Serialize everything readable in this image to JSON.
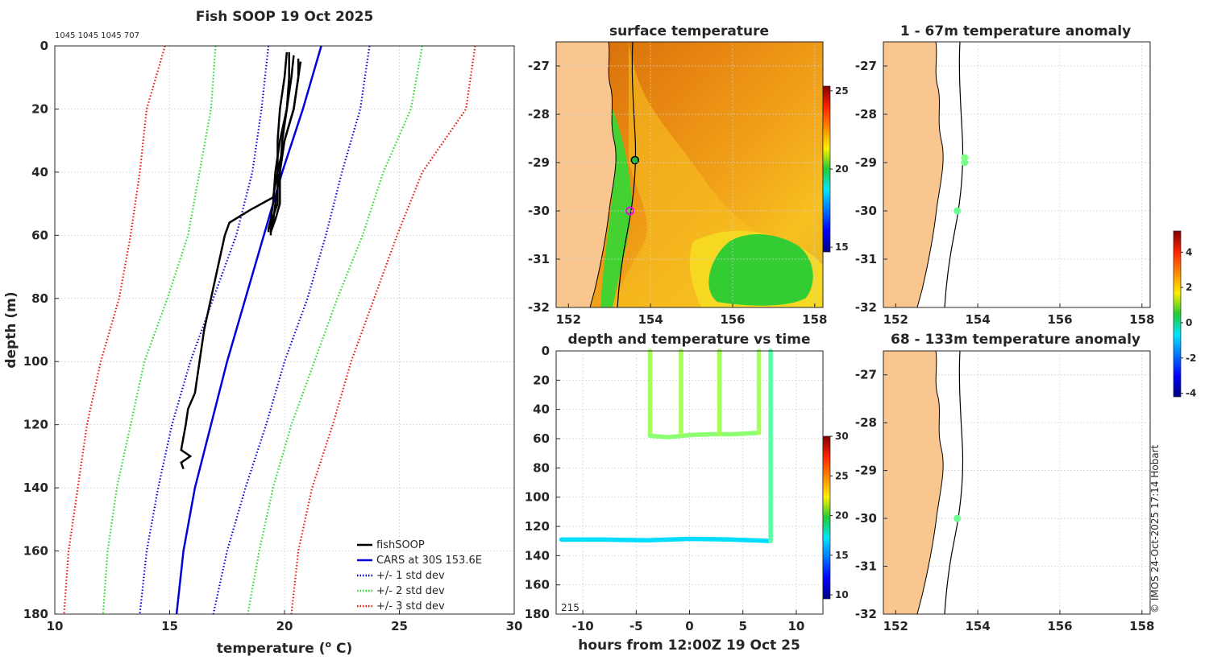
{
  "figure": {
    "title": "Fish SOOP 19 Oct 2025",
    "deployment_ids": "1045 1045 1045 707",
    "credit": "© IMOS 24-Oct-2025 17:14 Hobart"
  },
  "chart_data": [
    {
      "id": "profile",
      "type": "line",
      "title": "Fish SOOP 19 Oct 2025",
      "xlabel": "temperature (",
      "xlabel_sup": "o",
      "xlabel_suffix": " C)",
      "ylabel": "depth (m)",
      "xlim": [
        10,
        30
      ],
      "ylim": [
        180,
        0
      ],
      "xticks": [
        10,
        15,
        20,
        25,
        30
      ],
      "yticks": [
        0,
        20,
        40,
        60,
        80,
        100,
        120,
        140,
        160,
        180
      ],
      "legend": {
        "placement": "bottom-right",
        "entries": [
          "fishSOOP",
          "CARS at 30S 153.6E",
          "+/- 1 std dev",
          "+/- 2 std dev",
          "+/- 3 std dev"
        ]
      },
      "colors": {
        "fishSOOP": "#000000",
        "cars": "#0000dd",
        "std1": "#0000dd",
        "std2": "#22dd22",
        "std3": "#ee1100"
      },
      "depths": [
        0,
        20,
        40,
        60,
        80,
        100,
        120,
        140,
        160,
        180
      ],
      "cars_mean": [
        21.6,
        20.8,
        19.9,
        19.1,
        18.3,
        17.5,
        16.8,
        16.1,
        15.6,
        15.3
      ],
      "std1_lower": [
        19.3,
        19.0,
        18.6,
        17.9,
        16.9,
        15.9,
        15.1,
        14.5,
        14.0,
        13.7
      ],
      "std1_upper": [
        23.7,
        23.3,
        22.5,
        21.8,
        21.0,
        20.0,
        19.2,
        18.3,
        17.5,
        16.9
      ],
      "std2_lower": [
        17.0,
        16.8,
        16.3,
        15.8,
        14.9,
        13.9,
        13.3,
        12.7,
        12.3,
        12.1
      ],
      "std2_upper": [
        26.0,
        25.5,
        24.3,
        23.4,
        22.3,
        21.3,
        20.3,
        19.5,
        18.9,
        18.4
      ],
      "std3_lower": [
        14.8,
        14.0,
        13.7,
        13.3,
        12.8,
        12.0,
        11.4,
        11.0,
        10.6,
        10.4
      ],
      "std3_upper": [
        28.3,
        27.9,
        26.0,
        24.9,
        23.9,
        22.9,
        22.1,
        21.2,
        20.6,
        20.3
      ],
      "fish_profiles": [
        {
          "depth": [
            2,
            10,
            20,
            30,
            40,
            50,
            54,
            57,
            60
          ],
          "temp": [
            20.1,
            20.0,
            19.8,
            19.7,
            19.7,
            19.7,
            19.5,
            19.4,
            19.4
          ]
        },
        {
          "depth": [
            3,
            10,
            20,
            30,
            40,
            50,
            55,
            58,
            59
          ],
          "temp": [
            20.4,
            20.3,
            20.1,
            19.8,
            19.6,
            19.5,
            19.4,
            19.3,
            19.3
          ]
        },
        {
          "depth": [
            5,
            10,
            20,
            30,
            40,
            50,
            56,
            58
          ],
          "temp": [
            20.7,
            20.6,
            20.4,
            20.0,
            19.8,
            19.6,
            19.5,
            19.3
          ]
        },
        {
          "depth": [
            2,
            10,
            20,
            30,
            40,
            50,
            55,
            59
          ],
          "temp": [
            20.2,
            20.2,
            20.1,
            19.9,
            19.8,
            19.8,
            19.6,
            19.4
          ]
        },
        {
          "depth": [
            4,
            10,
            20,
            30,
            40,
            48,
            52,
            56,
            60,
            70,
            80,
            90,
            100,
            110,
            115,
            120,
            128,
            130,
            132,
            134
          ],
          "temp": [
            20.6,
            20.6,
            20.4,
            20.0,
            19.7,
            19.5,
            18.5,
            17.6,
            17.4,
            17.1,
            16.8,
            16.5,
            16.3,
            16.1,
            15.8,
            15.7,
            15.5,
            15.9,
            15.5,
            15.6
          ]
        }
      ]
    },
    {
      "id": "surface",
      "type": "heatmap",
      "title": "surface temperature",
      "xlim": [
        151.7,
        158.2
      ],
      "ylim": [
        -32,
        -26.5
      ],
      "xticks": [
        152,
        154,
        156,
        158
      ],
      "yticks": [
        -27,
        -28,
        -29,
        -30,
        -31,
        -32
      ],
      "colorbar": {
        "min": 14.7,
        "max": 25.3,
        "ticks": [
          15,
          20,
          25
        ]
      },
      "markers": [
        {
          "lon": 153.62,
          "lat": -28.95,
          "style": "circle-black",
          "label": ""
        },
        {
          "lon": 153.5,
          "lat": -30.0,
          "style": "ring-magenta",
          "label": ""
        }
      ]
    },
    {
      "id": "anomaly_upper",
      "type": "scatter",
      "title": "1 - 67m temperature anomaly",
      "xlim": [
        151.7,
        158.2
      ],
      "ylim": [
        -32,
        -26.5
      ],
      "xticks": [
        152,
        154,
        156,
        158
      ],
      "yticks": [
        -27,
        -28,
        -29,
        -30,
        -31,
        -32
      ],
      "points": [
        {
          "lon": 153.68,
          "lat": -28.9,
          "anomaly": 0.5
        },
        {
          "lon": 153.68,
          "lat": -29.0,
          "anomaly": 0.4
        },
        {
          "lon": 153.5,
          "lat": -30.0,
          "anomaly": 0.3
        }
      ]
    },
    {
      "id": "anomaly_lower",
      "type": "scatter",
      "title": "68 - 133m temperature anomaly",
      "xlim": [
        151.7,
        158.2
      ],
      "ylim": [
        -32,
        -26.5
      ],
      "xticks": [
        152,
        154,
        156,
        158
      ],
      "yticks": [
        -27,
        -28,
        -29,
        -30,
        -31,
        -32
      ],
      "points": [
        {
          "lon": 153.5,
          "lat": -30.0,
          "anomaly": 0.3
        }
      ],
      "colorbar": {
        "min": -4.2,
        "max": 5.2,
        "ticks": [
          -4,
          -2,
          0,
          2,
          4
        ]
      }
    },
    {
      "id": "time",
      "type": "scatter",
      "title": "depth and temperature vs time",
      "xlabel": "hours from 12:00Z 19 Oct 25",
      "xlim": [
        -12.5,
        12.5
      ],
      "ylim": [
        180,
        0
      ],
      "xticks": [
        -10,
        -5,
        0,
        5,
        10
      ],
      "yticks": [
        0,
        20,
        40,
        60,
        80,
        100,
        120,
        140,
        160,
        180
      ],
      "annotation": "215",
      "colorbar": {
        "min": 9.5,
        "max": 30,
        "ticks": [
          10,
          15,
          20,
          25,
          30
        ]
      },
      "segments": [
        {
          "t": [
            -12,
            -8,
            -4,
            0,
            4,
            7.5
          ],
          "depth": [
            129,
            129,
            129.5,
            128.5,
            129,
            130
          ],
          "temp": 16.5
        },
        {
          "t": [
            7.6,
            7.6
          ],
          "depth": [
            130,
            0
          ],
          "temp": 19.0
        },
        {
          "t": [
            -3.7,
            -3.7
          ],
          "depth": [
            0,
            58
          ],
          "temp": 20.5
        },
        {
          "t": [
            -3.7,
            -2,
            0,
            2,
            4,
            6.5
          ],
          "depth": [
            58,
            59,
            57.5,
            57,
            57,
            56
          ],
          "temp": 20.0
        },
        {
          "t": [
            -0.8,
            -0.8
          ],
          "depth": [
            0,
            57
          ],
          "temp": 20.5
        },
        {
          "t": [
            2.8,
            2.8
          ],
          "depth": [
            0,
            57
          ],
          "temp": 20.5
        },
        {
          "t": [
            6.5,
            6.5
          ],
          "depth": [
            0,
            56
          ],
          "temp": 20.5
        }
      ]
    }
  ]
}
